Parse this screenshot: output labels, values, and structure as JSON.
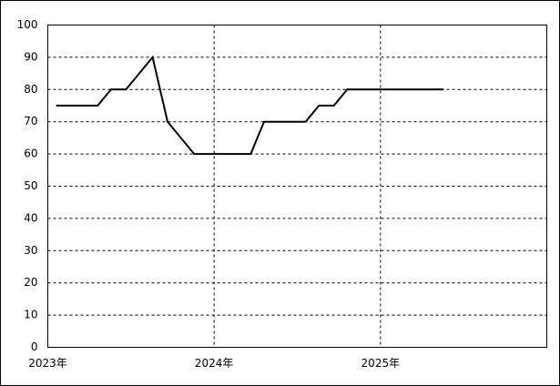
{
  "chart_data": {
    "type": "line",
    "x": [
      2023.05,
      2023.3,
      2023.38,
      2023.47,
      2023.63,
      2023.72,
      2023.88,
      2024.22,
      2024.3,
      2024.55,
      2024.63,
      2024.72,
      2024.8,
      2025.38
    ],
    "values": [
      75,
      75,
      80,
      80,
      90,
      70,
      60,
      60,
      70,
      70,
      75,
      75,
      80,
      80
    ],
    "color": "#000000",
    "xlim": [
      2023,
      2026
    ],
    "xticks": [
      {
        "value": 2023,
        "label": "2023年"
      },
      {
        "value": 2024,
        "label": "2024年"
      },
      {
        "value": 2025,
        "label": "2025年"
      }
    ],
    "ylim": [
      0,
      100
    ],
    "yticks": [
      0,
      10,
      20,
      30,
      40,
      50,
      60,
      70,
      80,
      90,
      100
    ],
    "grid": true
  }
}
